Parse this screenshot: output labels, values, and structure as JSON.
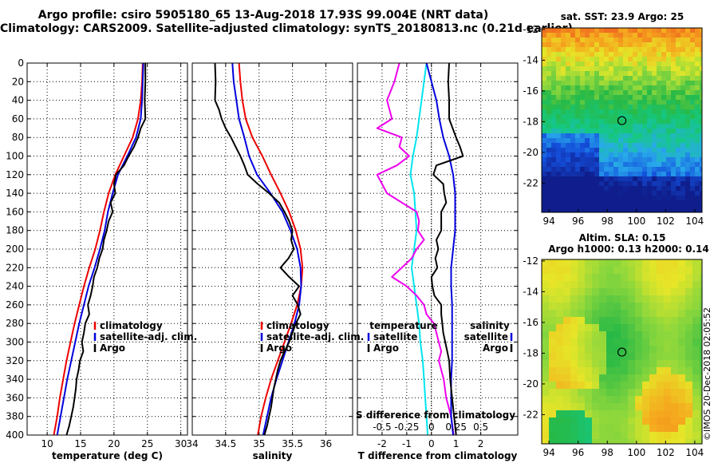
{
  "header": {
    "line1": "Argo profile: csiro 5905180_65 13-Aug-2018 17.93S 99.004E (NRT data)",
    "line2": "Climatology: CARS2009. Satellite-adjusted climatology: synTS_20180813.nc (0.21d earlier)"
  },
  "timestamp": "©IMOS 20-Dec-2018 02:05:52",
  "colors": {
    "climatology": "#ee0000",
    "satellite": "#0000dd",
    "argo": "#000000",
    "s_diff": "#ee00ee",
    "t_diff": "#00e5ee"
  },
  "chart_data": [
    {
      "type": "line",
      "title": "Temperature profile",
      "xlabel": "temperature (deg C)",
      "ylabel": "depth",
      "xlim": [
        7,
        31
      ],
      "ylim": [
        0,
        400
      ],
      "xticks": [
        10,
        15,
        20,
        25,
        30
      ],
      "yticks": [
        0,
        20,
        40,
        60,
        80,
        100,
        120,
        140,
        160,
        180,
        200,
        220,
        240,
        260,
        280,
        300,
        320,
        340,
        360,
        380,
        400
      ],
      "legend": [
        "climatology",
        "satellite-adj. clim.",
        "Argo"
      ],
      "series": [
        {
          "name": "climatology",
          "depth": [
            0,
            20,
            40,
            60,
            80,
            100,
            120,
            140,
            160,
            180,
            200,
            220,
            240,
            260,
            280,
            300,
            320,
            340,
            360,
            380,
            400
          ],
          "values": [
            24.3,
            24.2,
            24.0,
            23.6,
            22.8,
            21.5,
            20.2,
            19.2,
            18.5,
            17.9,
            17.2,
            16.3,
            15.5,
            14.8,
            14.1,
            13.5,
            12.9,
            12.4,
            11.9,
            11.5,
            11.0
          ]
        },
        {
          "name": "satellite-adj. clim.",
          "depth": [
            0,
            20,
            40,
            60,
            80,
            100,
            120,
            140,
            160,
            180,
            200,
            220,
            240,
            260,
            280,
            300,
            320,
            340,
            360,
            380,
            400
          ],
          "values": [
            24.4,
            24.3,
            24.2,
            24.0,
            23.3,
            22.0,
            20.6,
            19.8,
            19.1,
            18.6,
            17.9,
            17.1,
            16.2,
            15.5,
            14.8,
            14.2,
            13.6,
            13.0,
            12.5,
            12.0,
            11.5
          ]
        },
        {
          "name": "Argo",
          "depth": [
            0,
            20,
            40,
            60,
            70,
            80,
            90,
            100,
            110,
            120,
            130,
            140,
            150,
            160,
            170,
            180,
            190,
            200,
            210,
            220,
            230,
            240,
            250,
            260,
            270,
            280,
            290,
            300,
            310,
            320,
            330,
            340,
            350,
            360,
            370,
            380,
            390,
            400
          ],
          "values": [
            24.7,
            24.7,
            24.6,
            24.7,
            24.0,
            23.6,
            23.0,
            22.2,
            21.5,
            20.3,
            20.0,
            20.2,
            19.5,
            19.8,
            19.2,
            18.9,
            18.5,
            18.3,
            17.8,
            17.5,
            17.0,
            16.8,
            16.5,
            16.1,
            16.3,
            15.7,
            15.5,
            15.2,
            15.4,
            14.9,
            14.7,
            14.4,
            14.3,
            14.1,
            13.9,
            13.6,
            13.3,
            12.9
          ]
        }
      ]
    },
    {
      "type": "line",
      "title": "Salinity profile",
      "xlabel": "salinity",
      "ylabel": "depth",
      "xlim": [
        34,
        36.4
      ],
      "ylim": [
        0,
        400
      ],
      "xticks": [
        34,
        34.5,
        35,
        35.5,
        36
      ],
      "xticklabels": [
        "34",
        "34.5",
        "35",
        "35.5",
        "36"
      ],
      "legend": [
        "climatology",
        "satellite-adj. clim.",
        "Argo"
      ],
      "series": [
        {
          "name": "climatology",
          "depth": [
            0,
            20,
            40,
            60,
            80,
            100,
            120,
            140,
            160,
            180,
            200,
            220,
            240,
            260,
            280,
            300,
            320,
            340,
            360,
            380,
            400
          ],
          "values": [
            34.7,
            34.72,
            34.75,
            34.8,
            34.9,
            35.05,
            35.18,
            35.32,
            35.45,
            35.55,
            35.62,
            35.65,
            35.63,
            35.57,
            35.48,
            35.38,
            35.28,
            35.18,
            35.1,
            35.03,
            34.98
          ]
        },
        {
          "name": "satellite-adj. clim.",
          "depth": [
            0,
            20,
            40,
            60,
            80,
            100,
            120,
            140,
            160,
            180,
            200,
            220,
            240,
            260,
            280,
            300,
            320,
            340,
            360,
            380,
            400
          ],
          "values": [
            34.6,
            34.62,
            34.66,
            34.7,
            34.78,
            34.85,
            34.97,
            35.17,
            35.35,
            35.47,
            35.57,
            35.62,
            35.63,
            35.6,
            35.53,
            35.44,
            35.35,
            35.26,
            35.18,
            35.12,
            35.06
          ]
        },
        {
          "name": "Argo",
          "depth": [
            0,
            20,
            40,
            50,
            60,
            70,
            80,
            90,
            100,
            110,
            120,
            130,
            140,
            150,
            160,
            170,
            180,
            190,
            200,
            210,
            220,
            230,
            240,
            250,
            260,
            270,
            280,
            290,
            300,
            310,
            320,
            330,
            340,
            350,
            360,
            370,
            380,
            390,
            400
          ],
          "values": [
            34.34,
            34.35,
            34.34,
            34.4,
            34.44,
            34.5,
            34.58,
            34.65,
            34.72,
            34.78,
            34.83,
            34.98,
            35.15,
            35.3,
            35.38,
            35.45,
            35.5,
            35.48,
            35.52,
            35.44,
            35.32,
            35.45,
            35.6,
            35.5,
            35.58,
            35.62,
            35.55,
            35.5,
            35.45,
            35.38,
            35.32,
            35.28,
            35.25,
            35.22,
            35.2,
            35.18,
            35.15,
            35.12,
            35.08
          ]
        }
      ]
    },
    {
      "type": "line",
      "title": "Difference from climatology",
      "xlabel": "T difference from climatology",
      "xlabel_top": "S difference from climatology",
      "xlim": [
        -3,
        3.5
      ],
      "ylim": [
        0,
        400
      ],
      "xticks": [
        -2,
        -1,
        0,
        1,
        2
      ],
      "s_axis": {
        "xticks": [
          -0.5,
          -0.25,
          0,
          0.25,
          0.5
        ],
        "xticklabels": [
          "-0.5",
          "-0.25",
          "0",
          "0.25",
          "0.5"
        ],
        "xlim": [
          -0.75,
          0.875
        ]
      },
      "legend_left_title": "temperature",
      "legend_right_title": "salinity",
      "legend_left": [
        "satellite",
        "Argo"
      ],
      "legend_right": [
        "satellite",
        "Argo"
      ],
      "series": [
        {
          "name": "T satellite",
          "depth": [
            0,
            20,
            40,
            60,
            80,
            100,
            120,
            140,
            160,
            180,
            200,
            220,
            240,
            260,
            280,
            300,
            320,
            340,
            360,
            380,
            400
          ],
          "values": [
            -0.2,
            -0.3,
            -0.4,
            -0.5,
            -0.6,
            -0.75,
            -0.85,
            -0.7,
            -0.65,
            -0.6,
            -0.7,
            -0.8,
            -0.7,
            -0.6,
            -0.5,
            -0.45,
            -0.35,
            -0.3,
            -0.25,
            -0.2,
            -0.15
          ]
        },
        {
          "name": "T Argo",
          "depth": [
            0,
            20,
            40,
            60,
            70,
            80,
            90,
            100,
            110,
            120,
            140,
            160,
            170,
            180,
            190,
            200,
            210,
            220,
            230,
            240,
            250,
            260,
            270,
            280,
            290,
            300,
            310,
            320,
            340,
            360,
            380,
            400
          ],
          "values": [
            -1.3,
            -1.5,
            -1.8,
            -1.6,
            -2.2,
            -1.2,
            -1.3,
            -0.9,
            -1.4,
            -2.2,
            -1.8,
            -0.6,
            -0.5,
            -0.55,
            -0.3,
            -0.6,
            -0.8,
            -1.2,
            -1.6,
            -1.0,
            -0.6,
            -0.3,
            -0.2,
            0.1,
            0.2,
            0.3,
            0.4,
            0.3,
            0.5,
            0.6,
            0.8,
            0.9
          ]
        },
        {
          "name": "S satellite",
          "depth": [
            0,
            20,
            40,
            60,
            80,
            100,
            120,
            140,
            160,
            180,
            200,
            220,
            240,
            260,
            280,
            300,
            320,
            340,
            360,
            380,
            400
          ],
          "values": [
            -0.05,
            0.0,
            0.05,
            0.08,
            0.12,
            0.18,
            0.22,
            0.24,
            0.24,
            0.24,
            0.22,
            0.2,
            0.2,
            0.21,
            0.21,
            0.21,
            0.21,
            0.2,
            0.2,
            0.2,
            0.22
          ]
        },
        {
          "name": "S Argo",
          "depth": [
            0,
            20,
            40,
            60,
            80,
            90,
            100,
            110,
            120,
            130,
            140,
            150,
            160,
            170,
            180,
            190,
            200,
            210,
            220,
            230,
            240,
            250,
            260,
            270,
            280,
            290,
            300,
            310,
            320,
            340,
            360,
            380,
            400
          ],
          "values": [
            0.18,
            0.17,
            0.18,
            0.18,
            0.25,
            0.29,
            0.32,
            0.05,
            0.02,
            0.12,
            0.13,
            0.15,
            0.1,
            0.1,
            0.1,
            0.05,
            0.07,
            0.04,
            0.06,
            0.0,
            0.01,
            0.03,
            0.1,
            0.1,
            0.11,
            0.12,
            0.14,
            0.16,
            0.18,
            0.19,
            0.21,
            0.23,
            0.25
          ]
        }
      ]
    },
    {
      "type": "heatmap",
      "title": "sat. SST: 23.9  Argo: 25",
      "xlim": [
        93.5,
        104.5
      ],
      "ylim": [
        -23.9,
        -11.9
      ],
      "xticks": [
        94,
        96,
        98,
        100,
        102,
        104
      ],
      "yticks": [
        -22,
        -20,
        -18,
        -16,
        -14,
        -12
      ],
      "argo_position": {
        "lon": 99.004,
        "lat": -17.93
      }
    },
    {
      "type": "heatmap",
      "title": "Altim. SLA: 0.15",
      "subtitle": "Argo h1000: 0.13 h2000: 0.14",
      "xlim": [
        93.5,
        104.5
      ],
      "ylim": [
        -23.9,
        -11.9
      ],
      "xticks": [
        94,
        96,
        98,
        100,
        102,
        104
      ],
      "yticks": [
        -22,
        -20,
        -18,
        -16,
        -14,
        -12
      ],
      "argo_position": {
        "lon": 99.004,
        "lat": -17.93
      }
    }
  ]
}
